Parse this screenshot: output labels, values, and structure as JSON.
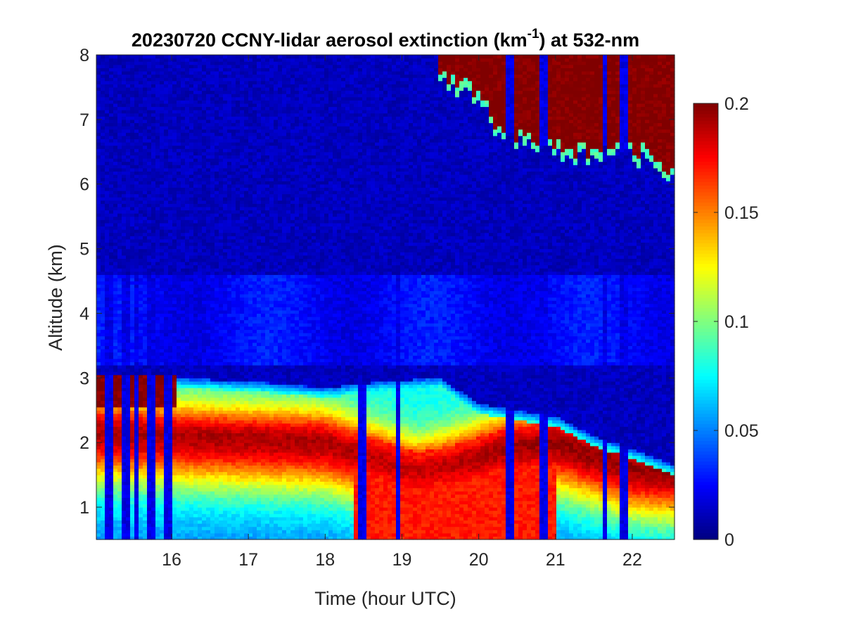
{
  "chart_data": {
    "type": "heatmap",
    "title": {
      "prefix": "20230720 CCNY-lidar aerosol extinction (km",
      "superscript": "-1",
      "suffix": ") at 532-nm"
    },
    "xlabel": "Time (hour UTC)",
    "ylabel": "Altitude (km)",
    "xlim": [
      15.02,
      22.55
    ],
    "ylim": [
      0.5,
      8
    ],
    "xticks": [
      16,
      17,
      18,
      19,
      20,
      21,
      22
    ],
    "xtick_labels": [
      "16",
      "17",
      "18",
      "19",
      "20",
      "21",
      "22"
    ],
    "yticks": [
      1,
      2,
      3,
      4,
      5,
      6,
      7,
      8
    ],
    "ytick_labels": [
      "1",
      "2",
      "3",
      "4",
      "5",
      "6",
      "7",
      "8"
    ],
    "colorbar": {
      "colormap": "jet",
      "clim": [
        0,
        0.2
      ],
      "ticks": [
        0,
        0.05,
        0.1,
        0.15,
        0.2
      ],
      "tick_labels": [
        "0",
        "0.05",
        "0.1",
        "0.15",
        "0.2"
      ]
    },
    "grid": false,
    "layers": [
      {
        "name": "background",
        "base_value": 0.012
      },
      {
        "name": "free-troposphere-haze",
        "alt_range": [
          3.2,
          4.6
        ],
        "value": 0.025
      },
      {
        "name": "boundary-layer-top",
        "alt": [
          2.9,
          3.0,
          2.95,
          2.85,
          2.95,
          3.0,
          2.6,
          2.5,
          2.4,
          2.1,
          1.9,
          1.65
        ],
        "time": [
          15.0,
          16.0,
          17.0,
          18.0,
          18.8,
          19.5,
          20.0,
          20.5,
          21.0,
          21.5,
          22.0,
          22.55
        ]
      },
      {
        "name": "dense-aerosol-layer",
        "alt": [
          2.15,
          2.1,
          2.05,
          2.0,
          1.7,
          1.55,
          1.7,
          1.9,
          2.0,
          1.8,
          1.6,
          1.55
        ],
        "time": [
          15.0,
          16.0,
          17.0,
          18.0,
          18.8,
          19.2,
          19.8,
          20.3,
          21.0,
          21.5,
          22.0,
          22.55
        ],
        "peak_value": 0.2
      },
      {
        "name": "cirrus-cloud",
        "time_range": [
          19.45,
          22.55
        ],
        "base_alt": [
          7.8,
          7.35,
          6.8,
          6.7,
          6.5,
          6.6,
          6.5,
          6.2
        ],
        "base_time": [
          19.5,
          20.0,
          20.3,
          20.8,
          21.3,
          21.8,
          22.2,
          22.55
        ],
        "value": 0.2
      },
      {
        "name": "low-cloud-1530",
        "time_range": [
          15.02,
          16.05
        ],
        "alt_range": [
          2.55,
          3.05
        ],
        "value": 0.2
      }
    ],
    "low_signal_columns": [
      15.2,
      15.4,
      15.55,
      15.75,
      15.95,
      18.5,
      18.95,
      20.4,
      20.85,
      21.65,
      21.9
    ]
  }
}
